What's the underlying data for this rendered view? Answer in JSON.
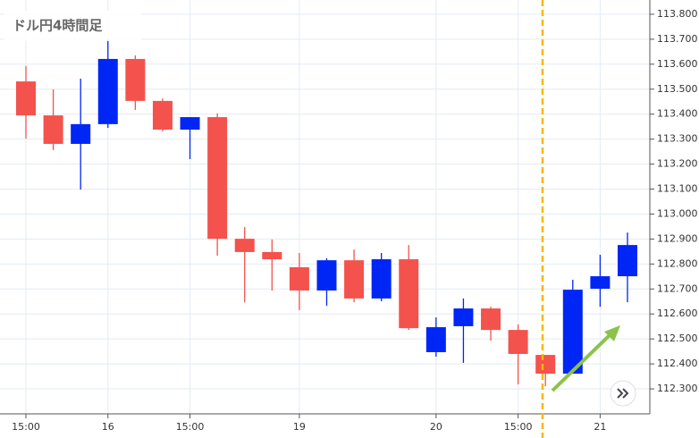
{
  "chart_data": {
    "type": "candlestick",
    "title": "ドル円4時間足",
    "categories": [
      "15:00",
      null,
      null,
      "16",
      null,
      null,
      "15:00",
      null,
      null,
      null,
      "19",
      null,
      null,
      null,
      null,
      "20",
      null,
      null,
      "15:00",
      null,
      null,
      "21",
      null
    ],
    "open": [
      113.531,
      113.395,
      113.281,
      113.36,
      113.621,
      113.453,
      113.338,
      113.388,
      112.901,
      112.848,
      112.787,
      112.694,
      112.815,
      112.662,
      112.819,
      112.447,
      112.551,
      112.622,
      112.536,
      112.436,
      112.361,
      112.701,
      112.751
    ],
    "high": [
      113.592,
      113.499,
      113.542,
      113.7,
      113.635,
      113.463,
      113.388,
      113.403,
      112.948,
      112.898,
      112.844,
      112.823,
      112.858,
      112.844,
      112.876,
      112.586,
      112.662,
      112.629,
      112.558,
      112.436,
      112.737,
      112.837,
      112.926
    ],
    "low": [
      113.302,
      113.256,
      113.098,
      113.345,
      113.417,
      113.331,
      113.22,
      112.833,
      112.647,
      112.694,
      112.615,
      112.633,
      112.647,
      112.651,
      112.536,
      112.429,
      112.404,
      112.493,
      112.318,
      112.311,
      112.361,
      112.629,
      112.647
    ],
    "close": [
      113.395,
      113.281,
      113.36,
      113.621,
      113.453,
      113.338,
      113.388,
      112.901,
      112.848,
      112.819,
      112.694,
      112.815,
      112.662,
      112.819,
      112.543,
      112.547,
      112.622,
      112.536,
      112.44,
      112.361,
      112.697,
      112.751,
      112.876
    ],
    "up_color": "#0026f5",
    "down_color": "#f4524d",
    "ylim": [
      112.2,
      113.857
    ],
    "yticks": [
      {
        "value": 112.3,
        "label": "112.300"
      },
      {
        "value": 112.4,
        "label": "112.400"
      },
      {
        "value": 112.5,
        "label": "112.500"
      },
      {
        "value": 112.6,
        "label": "112.600"
      },
      {
        "value": 112.7,
        "label": "112.700"
      },
      {
        "value": 112.8,
        "label": "112.800"
      },
      {
        "value": 112.9,
        "label": "112.900"
      },
      {
        "value": 113.0,
        "label": "113.000"
      },
      {
        "value": 113.1,
        "label": "113.100"
      },
      {
        "value": 113.2,
        "label": "113.200"
      },
      {
        "value": 113.3,
        "label": "113.300"
      },
      {
        "value": 113.4,
        "label": "113.400"
      },
      {
        "value": 113.5,
        "label": "113.500"
      },
      {
        "value": 113.6,
        "label": "113.600"
      },
      {
        "value": 113.7,
        "label": "113.700"
      },
      {
        "value": 113.8,
        "label": "113.800"
      }
    ],
    "grid": true
  }
}
